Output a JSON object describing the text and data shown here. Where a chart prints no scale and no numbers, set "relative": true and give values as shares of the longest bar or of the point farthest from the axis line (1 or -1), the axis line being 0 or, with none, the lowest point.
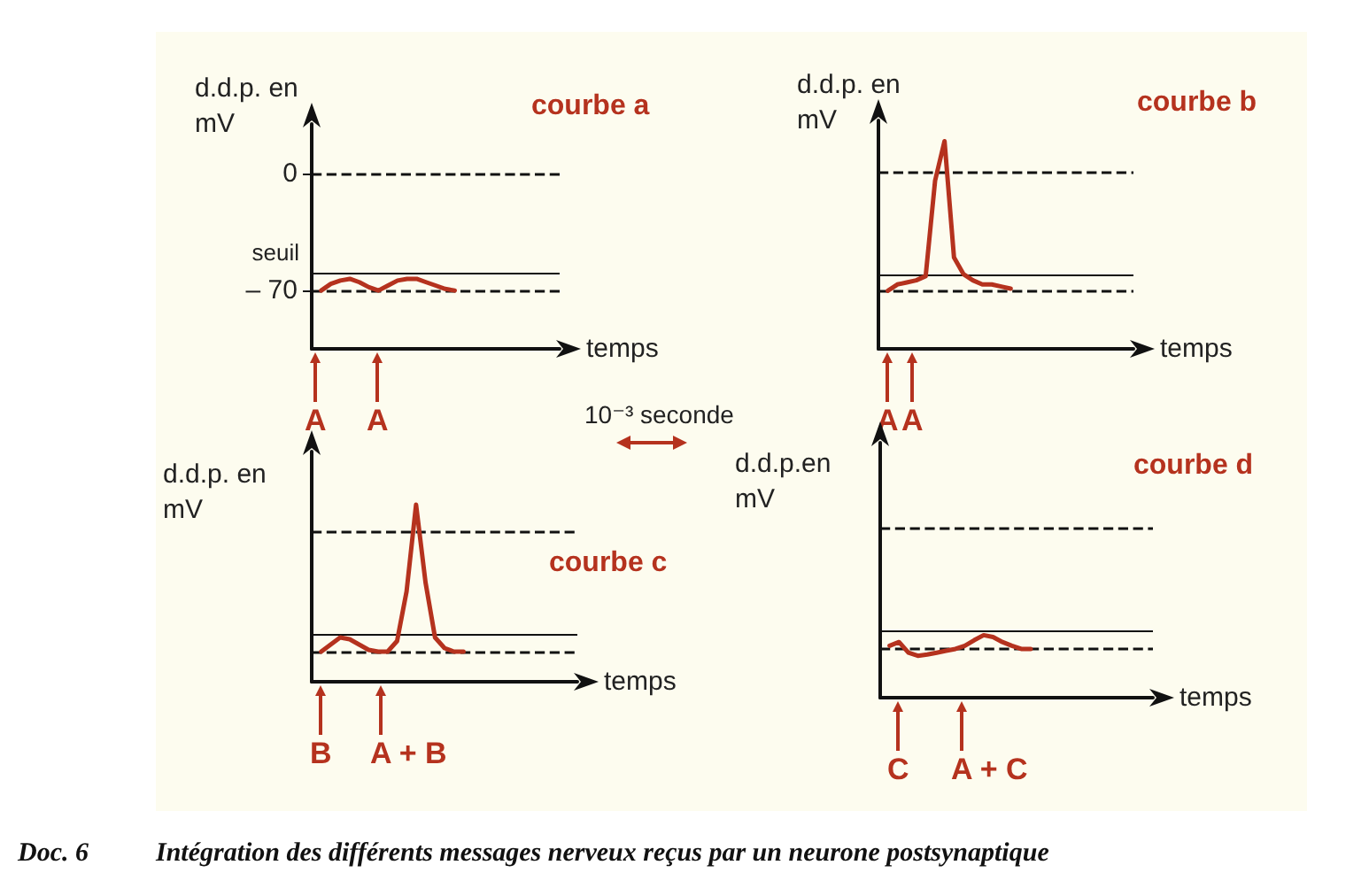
{
  "chart_data": [
    {
      "type": "line",
      "title": "courbe a",
      "ylabel": "d.d.p. en mV",
      "xlabel": "temps",
      "categories": [
        null,
        null,
        null,
        null,
        null,
        null,
        null,
        null,
        null,
        null,
        null,
        null,
        null,
        null,
        null,
        null,
        null,
        null,
        null,
        null,
        null,
        null,
        null,
        null,
        null,
        null,
        null
      ],
      "ylim": [
        -105,
        30
      ],
      "yticks": [
        0,
        {
          "value": -70,
          "label": "– 70"
        }
      ],
      "tick_labels": "y",
      "grid": false,
      "line_style": "solid",
      "series": [
        {
          "color": "#b5321e",
          "values": [
            null,
            -70,
            -66,
            -64,
            -63,
            -65,
            -68,
            -70,
            -67,
            -64,
            -63,
            -63,
            -65,
            -67,
            -69,
            -70,
            null,
            null,
            null,
            null,
            null,
            null,
            null,
            null,
            null,
            null,
            null
          ]
        }
      ],
      "ref_lines": [
        {
          "axis": "y",
          "value": 0,
          "line_style": "dashed"
        },
        {
          "axis": "y",
          "value": -70,
          "line_style": "dashed"
        },
        {
          "axis": "y",
          "value": -60,
          "label": "seuil",
          "line_style": "solid"
        }
      ],
      "annotations": [
        "A",
        "A",
        "10⁻³ seconde"
      ]
    },
    {
      "type": "line",
      "title": "courbe b",
      "ylabel": "d.d.p. en mV",
      "xlabel": "temps",
      "relative": true,
      "categories": [
        null,
        null,
        null,
        null,
        null,
        null,
        null,
        null,
        null,
        null,
        null,
        null,
        null,
        null,
        null,
        null,
        null,
        null,
        null,
        null,
        null,
        null,
        null,
        null,
        null,
        null,
        null,
        null
      ],
      "tick_labels": false,
      "grid": false,
      "line_style": "solid",
      "series": [
        {
          "color": "#b5321e",
          "values": [
            null,
            0.28,
            0.31,
            0.32,
            0.33,
            0.35,
            0.81,
            1,
            0.44,
            0.36,
            0.33,
            0.31,
            0.31,
            0.3,
            0.29,
            null,
            null,
            null,
            null,
            null,
            null,
            null,
            null,
            null,
            null,
            null,
            null,
            null
          ]
        }
      ],
      "ref_lines": [
        {
          "axis": "y",
          "value": 0.85,
          "line_style": "dashed"
        },
        {
          "axis": "y",
          "value": 0.28,
          "line_style": "dashed"
        },
        {
          "axis": "y",
          "value": 0.36,
          "line_style": "solid"
        }
      ],
      "annotations": [
        "A",
        "A"
      ]
    },
    {
      "type": "line",
      "title": "courbe c",
      "ylabel": "d.d.p. en mV",
      "xlabel": "temps",
      "relative": true,
      "categories": [
        null,
        null,
        null,
        null,
        null,
        null,
        null,
        null,
        null,
        null,
        null,
        null,
        null,
        null,
        null,
        null,
        null,
        null,
        null,
        null,
        null,
        null,
        null,
        null,
        null,
        null,
        null,
        null,
        null
      ],
      "tick_labels": false,
      "grid": false,
      "line_style": "solid",
      "series": [
        {
          "color": "#b5321e",
          "values": [
            null,
            0.17,
            0.21,
            0.25,
            0.24,
            0.21,
            0.18,
            0.17,
            0.17,
            0.23,
            0.51,
            1,
            0.56,
            0.25,
            0.19,
            0.17,
            0.17,
            null,
            null,
            null,
            null,
            null,
            null,
            null,
            null,
            null,
            null,
            null,
            null
          ]
        }
      ],
      "ref_lines": [
        {
          "axis": "y",
          "value": 0.85,
          "line_style": "dashed"
        },
        {
          "axis": "y",
          "value": 0.17,
          "line_style": "dashed"
        },
        {
          "axis": "y",
          "value": 0.27,
          "line_style": "solid"
        }
      ],
      "annotations": [
        "B",
        "A + B"
      ]
    },
    {
      "type": "line",
      "title": "courbe d",
      "ylabel": "d.d.p.en mV",
      "xlabel": "temps",
      "relative": true,
      "categories": [
        null,
        null,
        null,
        null,
        null,
        null,
        null,
        null,
        null,
        null,
        null,
        null,
        null,
        null,
        null,
        null,
        null,
        null,
        null,
        null,
        null,
        null,
        null,
        null,
        null,
        null,
        null,
        null,
        null,
        null
      ],
      "tick_labels": false,
      "grid": false,
      "line_style": "solid",
      "series": [
        {
          "color": "#b5321e",
          "values": [
            null,
            0.83,
            0.89,
            0.72,
            0.67,
            0.69,
            0.72,
            0.75,
            0.78,
            0.83,
            0.92,
            1,
            0.97,
            0.89,
            0.83,
            0.78,
            0.78,
            null,
            null,
            null,
            null,
            null,
            null,
            null,
            null,
            null,
            null,
            null,
            null,
            null
          ]
        }
      ],
      "ref_lines": [
        {
          "axis": "y",
          "value": 2.72,
          "line_style": "dashed"
        },
        {
          "axis": "y",
          "value": 0.78,
          "line_style": "dashed"
        },
        {
          "axis": "y",
          "value": 1.06,
          "line_style": "solid"
        }
      ],
      "annotations": [
        "C",
        "A + C",
        "Doc. 6",
        "Intégration des différents messages nerveux reçus par un neurone postsynaptique"
      ]
    }
  ]
}
